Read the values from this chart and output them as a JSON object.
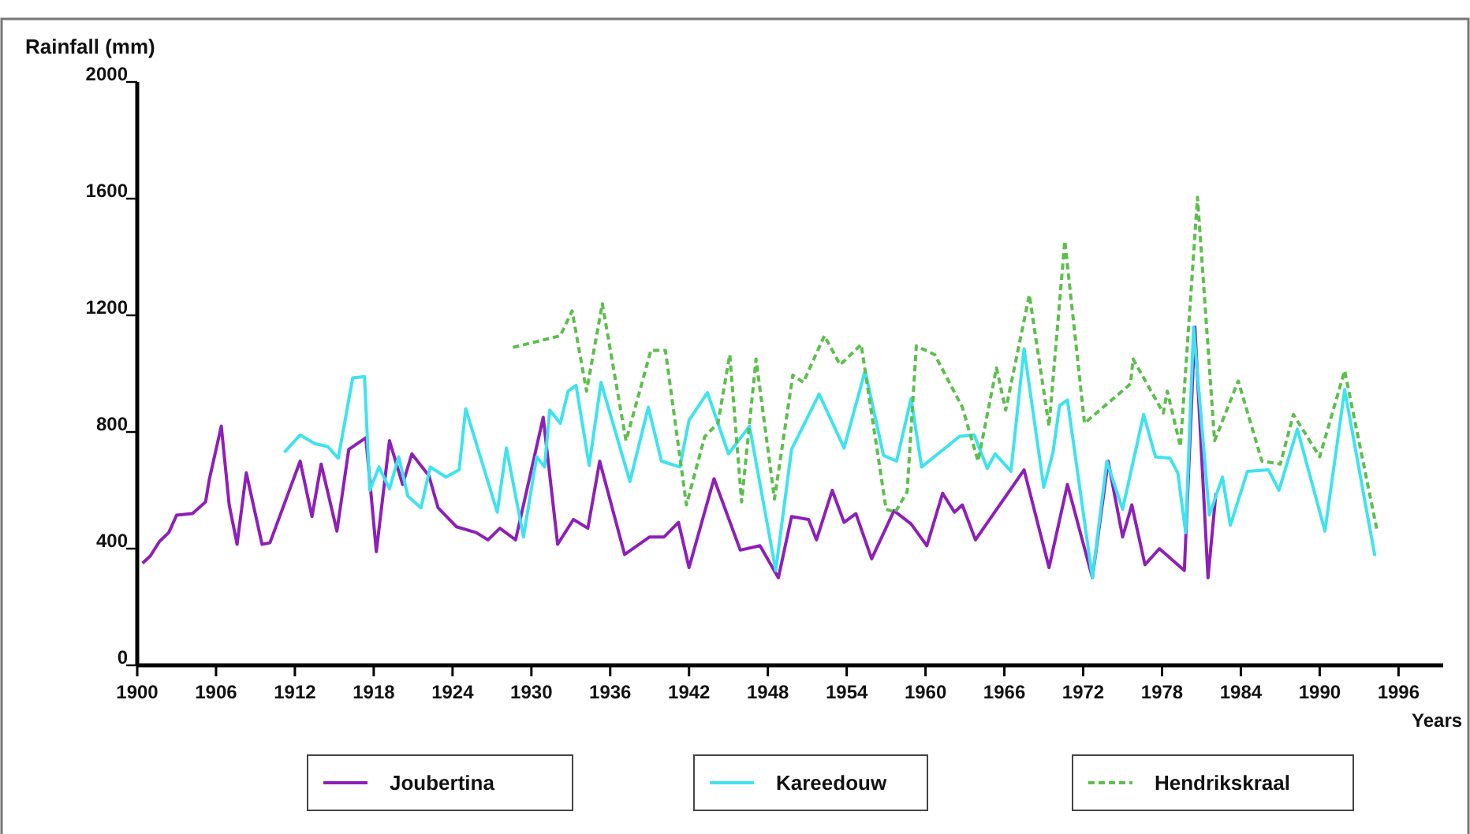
{
  "chart_data": {
    "type": "line",
    "ylabel": "Rainfall (mm)",
    "xlabel": "Years",
    "xlim": [
      1900,
      1999.4
    ],
    "xticks": [
      1900,
      1906,
      1912,
      1918,
      1924,
      1930,
      1936,
      1942,
      1948,
      1954,
      1960,
      1966,
      1972,
      1978,
      1984,
      1990,
      1996
    ],
    "ylim": [
      0,
      2000
    ],
    "yticks": [
      0,
      400,
      800,
      1200,
      1600,
      2000
    ],
    "grid": false,
    "legend": "bottom",
    "series": [
      {
        "name": "Joubertina",
        "color": "#8e1fb8",
        "line_style": "solid",
        "x": [
          1900.4,
          1901,
          1901.7,
          1902.4,
          1903,
          1904.2,
          1905.2,
          1905.5,
          1906.4,
          1907,
          1907.6,
          1908.3,
          1909.5,
          1910.1,
          1912.4,
          1913.3,
          1914,
          1915.2,
          1916.1,
          1917.4,
          1918.2,
          1919.2,
          1920.2,
          1920.9,
          1922.2,
          1922.9,
          1924.3,
          1925.8,
          1926.7,
          1927.6,
          1928.8,
          1930.9,
          1932,
          1933.2,
          1934.3,
          1935.2,
          1937.1,
          1939,
          1940.1,
          1941.2,
          1942,
          1943.9,
          1945.9,
          1947.4,
          1948.8,
          1949.8,
          1951.1,
          1951.7,
          1952.9,
          1953.8,
          1954.7,
          1955.9,
          1957.6,
          1958.9,
          1960.1,
          1961.3,
          1962.2,
          1962.8,
          1963.8,
          1967.5,
          1969.4,
          1970.8,
          1972.7,
          1973.9,
          1975,
          1975.7,
          1976.7,
          1977.8,
          1979.7,
          1980.5,
          1981.5,
          1982.1
        ],
        "values": [
          350,
          375,
          425,
          455,
          515,
          520,
          560,
          640,
          820,
          550,
          415,
          660,
          415,
          420,
          700,
          510,
          690,
          460,
          740,
          780,
          390,
          770,
          620,
          725,
          650,
          540,
          475,
          455,
          430,
          470,
          430,
          850,
          415,
          500,
          470,
          700,
          380,
          440,
          440,
          490,
          335,
          640,
          395,
          410,
          300,
          510,
          500,
          430,
          600,
          490,
          520,
          365,
          530,
          485,
          410,
          590,
          525,
          550,
          430,
          670,
          335,
          620,
          300,
          700,
          440,
          550,
          345,
          400,
          325,
          1160,
          300,
          590
        ]
      },
      {
        "name": "Kareedouw",
        "color": "#3ee3ee",
        "line_style": "solid",
        "x": [
          1911.2,
          1912.4,
          1913.5,
          1914.5,
          1915.3,
          1916.4,
          1917.3,
          1917.7,
          1918.4,
          1919.2,
          1919.9,
          1920.6,
          1921.6,
          1922.3,
          1923.5,
          1924.5,
          1925,
          1927.4,
          1928.1,
          1929.4,
          1930.4,
          1931,
          1931.4,
          1932.2,
          1932.8,
          1933.4,
          1934.4,
          1935.3,
          1937.5,
          1938.9,
          1939.9,
          1941.3,
          1942,
          1943.4,
          1945,
          1946.6,
          1948.6,
          1949.8,
          1951.9,
          1953.8,
          1955.4,
          1956.8,
          1957.8,
          1958.9,
          1959.7,
          1962.6,
          1963.7,
          1964.7,
          1965.3,
          1966.5,
          1967.5,
          1969,
          1969.7,
          1970.2,
          1970.8,
          1972.7,
          1973.8,
          1975,
          1976.6,
          1977.5,
          1978.6,
          1979.2,
          1979.8,
          1980.4,
          1981.6,
          1982.6,
          1983.2,
          1984.5,
          1986.1,
          1986.9,
          1988.3,
          1990.4,
          1991.9,
          1994.2
        ],
        "values": [
          730,
          790,
          760,
          750,
          710,
          985,
          990,
          600,
          680,
          605,
          715,
          580,
          540,
          680,
          645,
          670,
          880,
          525,
          745,
          440,
          715,
          680,
          875,
          830,
          940,
          960,
          685,
          970,
          630,
          885,
          700,
          680,
          840,
          935,
          725,
          820,
          325,
          740,
          930,
          745,
          1010,
          720,
          700,
          915,
          680,
          785,
          790,
          675,
          725,
          665,
          1085,
          610,
          730,
          890,
          910,
          300,
          700,
          535,
          860,
          715,
          710,
          660,
          455,
          1160,
          515,
          645,
          480,
          665,
          670,
          600,
          810,
          460,
          945,
          375
        ]
      },
      {
        "name": "Hendrikskraal",
        "color": "#5cbf4c",
        "line_style": "dashed",
        "x": [
          1928.6,
          1932.2,
          1933.1,
          1934.2,
          1935.4,
          1937.2,
          1939.1,
          1940.2,
          1941.8,
          1943.2,
          1944.2,
          1945.1,
          1946,
          1947.1,
          1948.5,
          1949.9,
          1950.7,
          1952.3,
          1953.5,
          1955.1,
          1957,
          1957.7,
          1958.6,
          1959.3,
          1960.7,
          1962.8,
          1964,
          1965.4,
          1966.1,
          1967.9,
          1969.4,
          1970.6,
          1972.1,
          1975.6,
          1975.8,
          1978.1,
          1978.4,
          1979.4,
          1980.7,
          1982,
          1983.8,
          1985.6,
          1987,
          1988,
          1990,
          1991.9,
          1994.4
        ],
        "values": [
          1090,
          1130,
          1215,
          940,
          1240,
          770,
          1080,
          1080,
          550,
          785,
          830,
          1065,
          560,
          1050,
          570,
          995,
          970,
          1130,
          1030,
          1100,
          535,
          525,
          595,
          1095,
          1065,
          885,
          700,
          1020,
          875,
          1270,
          820,
          1455,
          830,
          965,
          1050,
          865,
          940,
          750,
          1605,
          770,
          975,
          700,
          690,
          860,
          715,
          1010,
          455
        ]
      }
    ]
  }
}
